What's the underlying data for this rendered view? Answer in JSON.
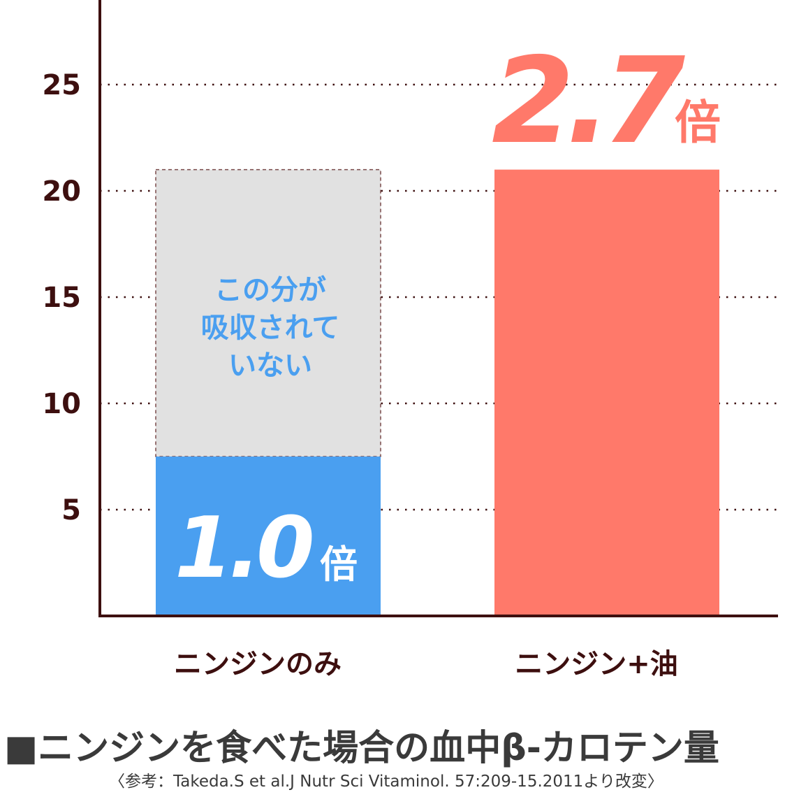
{
  "chart_data": {
    "type": "bar",
    "categories": [
      "ニンジンのみ",
      "ニンジン+油"
    ],
    "series": [
      {
        "values": [
          7.5,
          21
        ]
      }
    ],
    "not_absorbed_portion": {
      "category": "ニンジンのみ",
      "from": 7.5,
      "to": 21,
      "note_lines": [
        "この分が",
        "吸収されて",
        "いない"
      ]
    },
    "bar_labels": [
      {
        "value": "1.0",
        "suffix": "倍"
      },
      {
        "value": "2.7",
        "suffix": "倍"
      }
    ],
    "y_ticks": [
      "5",
      "10",
      "15",
      "20",
      "25"
    ],
    "ylim": [
      0,
      28
    ],
    "grid": "dotted horizontal",
    "title": "■ニンジンを食べた場合の血中β-カロテン量",
    "source": "〈参考：Takeda.S et al.J Nutr Sci Vitaminol. 57:209-15.2011より改変〉",
    "colors": {
      "blue": "#4a9ff0",
      "salmon": "#ff796a",
      "gray": "#e1e1e1",
      "axis": "#3d0f0f"
    }
  }
}
